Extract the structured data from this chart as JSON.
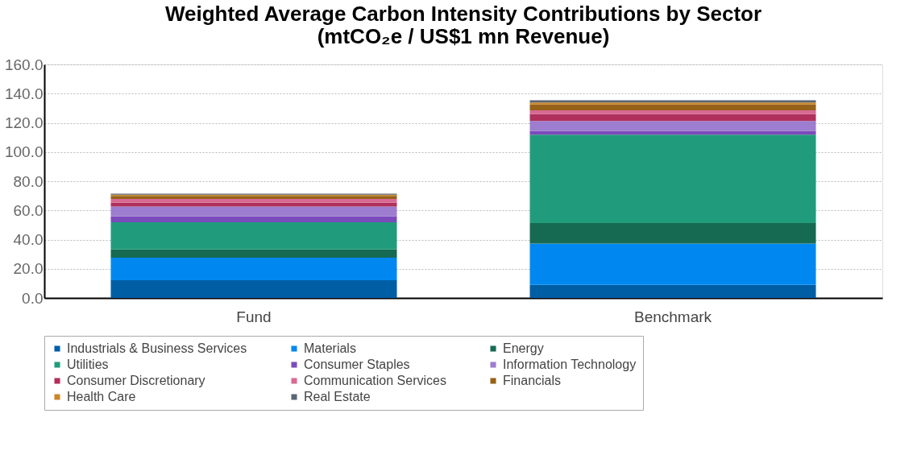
{
  "chart_data": {
    "type": "bar",
    "title": [
      "Weighted Average Carbon Intensity Contributions by Sector",
      "(mtCO₂e / US$1 mn Revenue)"
    ],
    "categories": [
      "Fund",
      "Benchmark"
    ],
    "stacked": true,
    "ylim": [
      0,
      160
    ],
    "yticks": [
      {
        "value": 0,
        "label": "0.0"
      },
      {
        "value": 20,
        "label": "20.0"
      },
      {
        "value": 40,
        "label": "40.0"
      },
      {
        "value": 60,
        "label": "60.0"
      },
      {
        "value": 80,
        "label": "80.0"
      },
      {
        "value": 100,
        "label": "100.0"
      },
      {
        "value": 120,
        "label": "120.0"
      },
      {
        "value": 140,
        "label": "140.0"
      },
      {
        "value": 160,
        "label": "160.0"
      }
    ],
    "grid": "y",
    "legend": "bottom",
    "series": [
      {
        "name": "Industrials & Business Services",
        "color": "#005ea5",
        "values": [
          12.2,
          8.9
        ]
      },
      {
        "name": "Materials",
        "color": "#0088f0",
        "values": [
          15.4,
          28.3
        ]
      },
      {
        "name": "Energy",
        "color": "#176a52",
        "values": [
          5.6,
          14.1
        ]
      },
      {
        "name": "Utilities",
        "color": "#209c7c",
        "values": [
          18.7,
          60.6
        ]
      },
      {
        "name": "Consumer Staples",
        "color": "#7b4bbc",
        "values": [
          4.1,
          2.6
        ]
      },
      {
        "name": "Information Technology",
        "color": "#9d7dcf",
        "values": [
          6.6,
          6.7
        ]
      },
      {
        "name": "Consumer Discretionary",
        "color": "#b0305c",
        "values": [
          2.6,
          4.9
        ]
      },
      {
        "name": "Communication Services",
        "color": "#d96a93",
        "values": [
          2.6,
          2.4
        ]
      },
      {
        "name": "Financials",
        "color": "#966118",
        "values": [
          2.1,
          4.0
        ]
      },
      {
        "name": "Health Care",
        "color": "#c9872a",
        "values": [
          0.9,
          1.4
        ]
      },
      {
        "name": "Real Estate",
        "color": "#5a6675",
        "values": [
          0.7,
          1.5
        ]
      }
    ]
  }
}
